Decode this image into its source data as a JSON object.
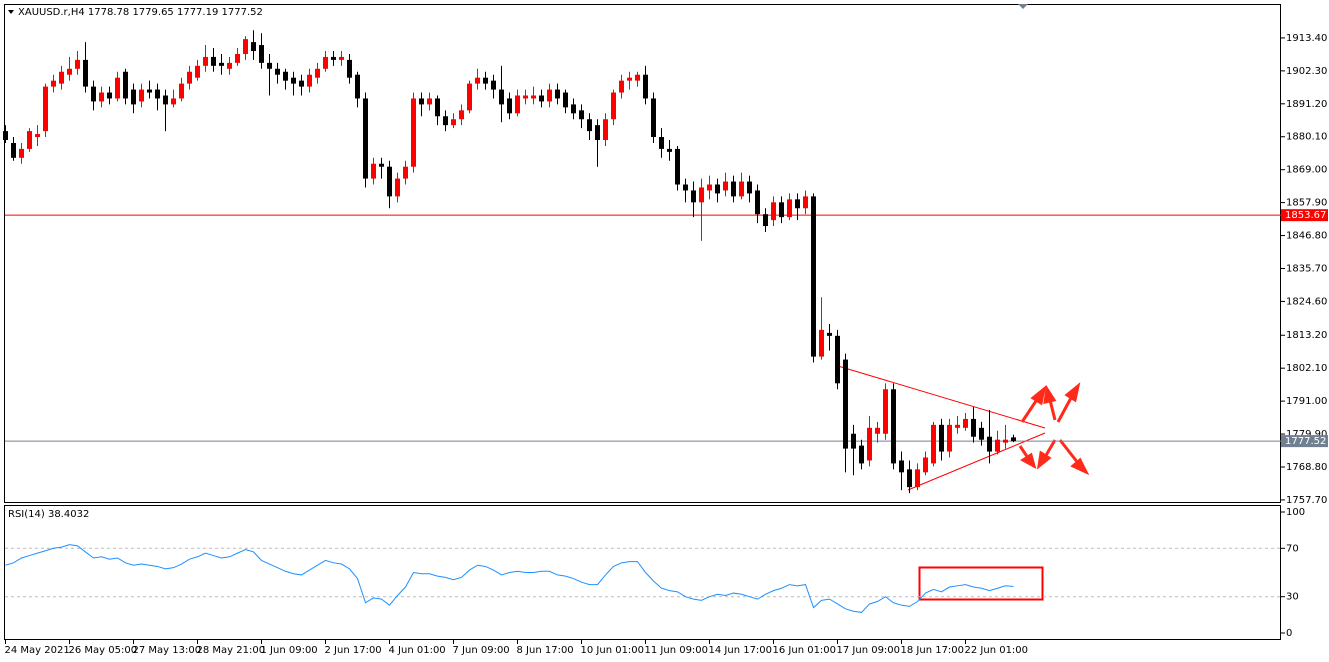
{
  "chart_data": {
    "type": "candlestick",
    "title": "XAUUSD.r,H4  1778.78 1779.65 1777.19 1777.52",
    "up_color": "#ff0000",
    "down_color": "#000000",
    "categories": [
      "24 May 2021",
      null,
      null,
      null,
      null,
      null,
      null,
      null,
      "26 May 05:00",
      null,
      null,
      null,
      null,
      null,
      null,
      null,
      "27 May 13:00",
      null,
      null,
      null,
      null,
      null,
      null,
      null,
      "28 May 21:00",
      null,
      null,
      null,
      null,
      null,
      null,
      null,
      "1 Jun 09:00",
      null,
      null,
      null,
      null,
      null,
      null,
      null,
      "2 Jun 17:00",
      null,
      null,
      null,
      null,
      null,
      null,
      null,
      "4 Jun 01:00",
      null,
      null,
      null,
      null,
      null,
      null,
      null,
      "7 Jun 09:00",
      null,
      null,
      null,
      null,
      null,
      null,
      null,
      "8 Jun 17:00",
      null,
      null,
      null,
      null,
      null,
      null,
      null,
      "10 Jun 01:00",
      null,
      null,
      null,
      null,
      null,
      null,
      null,
      "11 Jun 09:00",
      null,
      null,
      null,
      null,
      null,
      null,
      null,
      "14 Jun 17:00",
      null,
      null,
      null,
      null,
      null,
      null,
      null,
      "16 Jun 01:00",
      null,
      null,
      null,
      null,
      null,
      null,
      null,
      "17 Jun 09:00",
      null,
      null,
      null,
      null,
      null,
      null,
      null,
      "18 Jun 17:00",
      null,
      null,
      null,
      null,
      null,
      null,
      null,
      "22 Jun 01:00",
      null,
      null,
      null,
      null,
      null,
      null
    ],
    "candles": [
      [
        1882,
        1884,
        1878,
        1879
      ],
      [
        1878,
        1880,
        1872,
        1873
      ],
      [
        1873,
        1878,
        1871,
        1876
      ],
      [
        1876,
        1883,
        1875,
        1882
      ],
      [
        1880,
        1884,
        1877,
        1881
      ],
      [
        1882,
        1898,
        1880,
        1897
      ],
      [
        1897,
        1901,
        1895,
        1899
      ],
      [
        1898,
        1904,
        1896,
        1902
      ],
      [
        1901,
        1907,
        1899,
        1903
      ],
      [
        1903,
        1909,
        1901,
        1906
      ],
      [
        1906,
        1912,
        1895,
        1897
      ],
      [
        1897,
        1899,
        1889,
        1892
      ],
      [
        1892,
        1897,
        1890,
        1895
      ],
      [
        1895,
        1897,
        1891,
        1893
      ],
      [
        1893,
        1902,
        1892,
        1900
      ],
      [
        1902,
        1903,
        1891,
        1893
      ],
      [
        1896,
        1898,
        1888,
        1891
      ],
      [
        1892,
        1898,
        1890,
        1896
      ],
      [
        1896,
        1899,
        1893,
        1895
      ],
      [
        1896,
        1898,
        1889,
        1893
      ],
      [
        1894,
        1896,
        1882,
        1891
      ],
      [
        1891,
        1896,
        1890,
        1893
      ],
      [
        1893,
        1900,
        1892,
        1898
      ],
      [
        1898,
        1904,
        1896,
        1902
      ],
      [
        1900,
        1906,
        1899,
        1904
      ],
      [
        1904,
        1911,
        1902,
        1907
      ],
      [
        1907,
        1910,
        1902,
        1904
      ],
      [
        1905,
        1908,
        1901,
        1904
      ],
      [
        1903,
        1907,
        1901,
        1905
      ],
      [
        1905,
        1910,
        1904,
        1908
      ],
      [
        1908,
        1914,
        1906,
        1913
      ],
      [
        1912,
        1916,
        1906,
        1909
      ],
      [
        1911,
        1915,
        1903,
        1905
      ],
      [
        1905,
        1908,
        1894,
        1903
      ],
      [
        1903,
        1905,
        1898,
        1901
      ],
      [
        1902,
        1903,
        1896,
        1899
      ],
      [
        1900,
        1902,
        1894,
        1898
      ],
      [
        1899,
        1901,
        1894,
        1897
      ],
      [
        1897,
        1903,
        1895,
        1901
      ],
      [
        1900,
        1905,
        1898,
        1903
      ],
      [
        1903,
        1909,
        1902,
        1907
      ],
      [
        1907,
        1909,
        1904,
        1906
      ],
      [
        1906,
        1909,
        1904,
        1907
      ],
      [
        1906,
        1908,
        1898,
        1900
      ],
      [
        1901,
        1902,
        1890,
        1893
      ],
      [
        1893,
        1895,
        1863,
        1866
      ],
      [
        1866,
        1873,
        1864,
        1871
      ],
      [
        1871,
        1873,
        1866,
        1870
      ],
      [
        1870,
        1872,
        1856,
        1860
      ],
      [
        1860,
        1868,
        1858,
        1866
      ],
      [
        1866,
        1872,
        1864,
        1870
      ],
      [
        1870,
        1895,
        1868,
        1893
      ],
      [
        1893,
        1895,
        1887,
        1891
      ],
      [
        1891,
        1895,
        1889,
        1893
      ],
      [
        1893,
        1894,
        1884,
        1887
      ],
      [
        1887,
        1889,
        1882,
        1884
      ],
      [
        1884,
        1888,
        1883,
        1886
      ],
      [
        1886,
        1891,
        1884,
        1889
      ],
      [
        1889,
        1899,
        1888,
        1898
      ],
      [
        1898,
        1903,
        1896,
        1900
      ],
      [
        1900,
        1902,
        1896,
        1898
      ],
      [
        1899,
        1901,
        1893,
        1896
      ],
      [
        1896,
        1904,
        1885,
        1891
      ],
      [
        1893,
        1895,
        1886,
        1888
      ],
      [
        1888,
        1896,
        1887,
        1894
      ],
      [
        1893,
        1896,
        1891,
        1894
      ],
      [
        1893,
        1897,
        1891,
        1894
      ],
      [
        1894,
        1896,
        1890,
        1892
      ],
      [
        1892,
        1898,
        1890,
        1896
      ],
      [
        1896,
        1898,
        1891,
        1893
      ],
      [
        1895,
        1896,
        1888,
        1890
      ],
      [
        1891,
        1893,
        1886,
        1888
      ],
      [
        1889,
        1891,
        1883,
        1886
      ],
      [
        1886,
        1888,
        1879,
        1882
      ],
      [
        1884,
        1886,
        1870,
        1879
      ],
      [
        1879,
        1888,
        1877,
        1886
      ],
      [
        1886,
        1896,
        1884,
        1895
      ],
      [
        1895,
        1901,
        1893,
        1899
      ],
      [
        1899,
        1902,
        1896,
        1900
      ],
      [
        1899,
        1902,
        1897,
        1901
      ],
      [
        1901,
        1904,
        1891,
        1893
      ],
      [
        1893,
        1895,
        1878,
        1880
      ],
      [
        1880,
        1883,
        1873,
        1876
      ],
      [
        1876,
        1879,
        1872,
        1875
      ],
      [
        1876,
        1877,
        1862,
        1864
      ],
      [
        1864,
        1866,
        1858,
        1862
      ],
      [
        1862,
        1865,
        1853,
        1858
      ],
      [
        1858,
        1866,
        1845,
        1863
      ],
      [
        1862,
        1867,
        1859,
        1864
      ],
      [
        1864,
        1866,
        1858,
        1861
      ],
      [
        1862,
        1868,
        1860,
        1865
      ],
      [
        1865,
        1867,
        1858,
        1860
      ],
      [
        1860,
        1868,
        1859,
        1865
      ],
      [
        1865,
        1867,
        1858,
        1861
      ],
      [
        1862,
        1864,
        1851,
        1854
      ],
      [
        1854,
        1856,
        1848,
        1850
      ],
      [
        1852,
        1860,
        1850,
        1858
      ],
      [
        1858,
        1860,
        1851,
        1853
      ],
      [
        1853,
        1861,
        1852,
        1859
      ],
      [
        1859,
        1861,
        1852,
        1856
      ],
      [
        1856,
        1862,
        1854,
        1860
      ],
      [
        1860,
        1861,
        1804,
        1806
      ],
      [
        1806,
        1826,
        1805,
        1815
      ],
      [
        1814,
        1817,
        1808,
        1813
      ],
      [
        1813,
        1815,
        1795,
        1797
      ],
      [
        1805,
        1807,
        1767,
        1775
      ],
      [
        1780,
        1783,
        1766,
        1775
      ],
      [
        1776,
        1778,
        1768,
        1770
      ],
      [
        1771,
        1786,
        1769,
        1782
      ],
      [
        1780,
        1784,
        1777,
        1782
      ],
      [
        1780,
        1797,
        1778,
        1795
      ],
      [
        1795,
        1797,
        1768,
        1770
      ],
      [
        1771,
        1774,
        1761,
        1767
      ],
      [
        1768,
        1771,
        1760,
        1762
      ],
      [
        1762,
        1770,
        1761,
        1768
      ],
      [
        1767,
        1774,
        1766,
        1772
      ],
      [
        1770,
        1784,
        1769,
        1783
      ],
      [
        1783,
        1785,
        1771,
        1774
      ],
      [
        1774,
        1785,
        1772,
        1783
      ],
      [
        1782,
        1786,
        1780,
        1783
      ],
      [
        1782,
        1787,
        1781,
        1785
      ],
      [
        1785,
        1789,
        1777,
        1779
      ],
      [
        1782,
        1784,
        1776,
        1778
      ],
      [
        1779,
        1788,
        1770,
        1774
      ],
      [
        1774,
        1781,
        1773,
        1778
      ],
      [
        1777,
        1783,
        1775,
        1778
      ],
      [
        1778.78,
        1779.65,
        1777.19,
        1777.52
      ]
    ],
    "ylim": [
      1757.0,
      1924.5
    ],
    "yticks": [
      {
        "value": 1913.4,
        "label": "1913.40"
      },
      {
        "value": 1902.3,
        "label": "1902.30"
      },
      {
        "value": 1891.2,
        "label": "1891.20"
      },
      {
        "value": 1880.1,
        "label": "1880.10"
      },
      {
        "value": 1869,
        "label": "1869.00"
      },
      {
        "value": 1857.9,
        "label": "1857.90"
      },
      {
        "value": 1846.8,
        "label": "1846.80"
      },
      {
        "value": 1835.7,
        "label": "1835.70"
      },
      {
        "value": 1824.6,
        "label": "1824.60"
      },
      {
        "value": 1813.2,
        "label": "1813.20"
      },
      {
        "value": 1802.1,
        "label": "1802.10"
      },
      {
        "value": 1791,
        "label": "1791.00"
      },
      {
        "value": 1779.9,
        "label": "1779.90"
      },
      {
        "value": 1768.8,
        "label": "1768.80"
      },
      {
        "value": 1757.7,
        "label": "1757.70"
      }
    ],
    "price_lines": [
      {
        "value": 1853.67,
        "color": "#ff0000"
      },
      {
        "value": 1777.52,
        "color": "#708090"
      }
    ],
    "rsi": {
      "label": "RSI(14) 38.4032",
      "color": "#1e90ff",
      "ylim": [
        0,
        100
      ],
      "yticks": [
        0,
        30,
        70,
        100
      ],
      "levels": [
        30,
        70
      ],
      "values": [
        56,
        58,
        62,
        64,
        66,
        68,
        70,
        71,
        73,
        72,
        67,
        62,
        63,
        61,
        62,
        58,
        56,
        57,
        56,
        55,
        53,
        54,
        57,
        61,
        63,
        66,
        64,
        62,
        63,
        66,
        69,
        67,
        60,
        57,
        54,
        51,
        49,
        48,
        52,
        56,
        60,
        58,
        57,
        53,
        45,
        25,
        29,
        28,
        23,
        31,
        38,
        50,
        49,
        49,
        47,
        46,
        44,
        46,
        52,
        56,
        55,
        52,
        48,
        50,
        51,
        50,
        50,
        51,
        51,
        48,
        47,
        45,
        42,
        40,
        40,
        48,
        55,
        58,
        59,
        59,
        50,
        43,
        37,
        35,
        34,
        30,
        28,
        27,
        30,
        32,
        31,
        33,
        32,
        30,
        28,
        32,
        35,
        37,
        40,
        39,
        40,
        21,
        27,
        28,
        24,
        20,
        18,
        17,
        24,
        26,
        30,
        25,
        23,
        22,
        26,
        33,
        36,
        34,
        38,
        39,
        40,
        38,
        37,
        35,
        37,
        39,
        38.4032
      ]
    }
  }
}
